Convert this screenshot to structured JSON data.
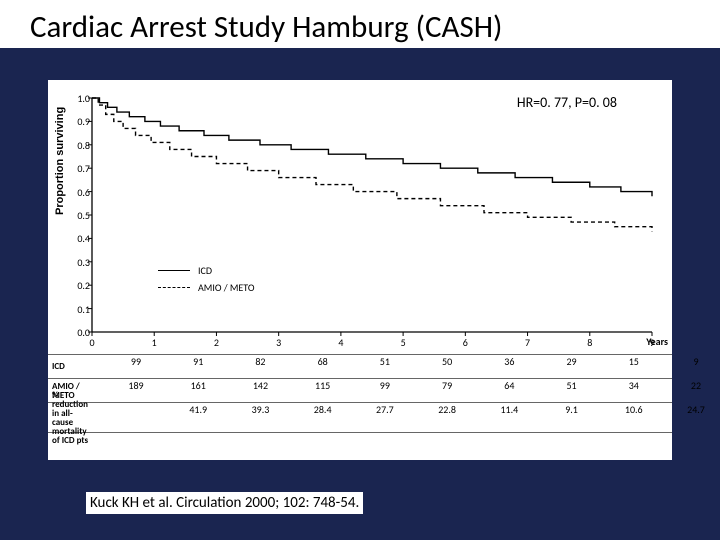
{
  "title": "Cardiac Arrest Study Hamburg (CASH)",
  "hr_stat": "HR=0. 77, P=0. 08",
  "citation": "Kuck KH et al. Circulation 2000; 102: 748-54.",
  "chart": {
    "type": "survival-step",
    "y_label": "Proportion surviving",
    "x_label": "Years",
    "ylim": [
      0,
      1.0
    ],
    "xlim": [
      0,
      9
    ],
    "y_ticks": [
      0,
      0.1,
      0.2,
      0.3,
      0.4,
      0.5,
      0.6,
      0.7,
      0.8,
      0.9,
      1.0
    ],
    "x_ticks": [
      0,
      1,
      2,
      3,
      4,
      5,
      6,
      7,
      8,
      9
    ],
    "background_color": "#ffffff",
    "axis_color": "#000000",
    "series": [
      {
        "name": "ICD",
        "style": "solid",
        "color": "#000000",
        "width": 1.4,
        "points": [
          [
            0,
            1.0
          ],
          [
            0.12,
            0.98
          ],
          [
            0.25,
            0.96
          ],
          [
            0.4,
            0.94
          ],
          [
            0.6,
            0.92
          ],
          [
            0.85,
            0.9
          ],
          [
            1.1,
            0.88
          ],
          [
            1.4,
            0.86
          ],
          [
            1.8,
            0.84
          ],
          [
            2.2,
            0.82
          ],
          [
            2.7,
            0.8
          ],
          [
            3.2,
            0.78
          ],
          [
            3.8,
            0.76
          ],
          [
            4.4,
            0.74
          ],
          [
            5.0,
            0.72
          ],
          [
            5.6,
            0.7
          ],
          [
            6.2,
            0.68
          ],
          [
            6.8,
            0.66
          ],
          [
            7.4,
            0.64
          ],
          [
            8.0,
            0.62
          ],
          [
            8.5,
            0.6
          ],
          [
            9.0,
            0.58
          ]
        ]
      },
      {
        "name": "AMIO / METO",
        "style": "dashed",
        "color": "#000000",
        "width": 1.4,
        "points": [
          [
            0,
            1.0
          ],
          [
            0.1,
            0.97
          ],
          [
            0.22,
            0.93
          ],
          [
            0.35,
            0.9
          ],
          [
            0.5,
            0.87
          ],
          [
            0.7,
            0.84
          ],
          [
            0.95,
            0.81
          ],
          [
            1.25,
            0.78
          ],
          [
            1.6,
            0.75
          ],
          [
            2.0,
            0.72
          ],
          [
            2.5,
            0.69
          ],
          [
            3.0,
            0.66
          ],
          [
            3.6,
            0.63
          ],
          [
            4.2,
            0.6
          ],
          [
            4.9,
            0.57
          ],
          [
            5.6,
            0.54
          ],
          [
            6.3,
            0.51
          ],
          [
            7.0,
            0.49
          ],
          [
            7.7,
            0.47
          ],
          [
            8.4,
            0.45
          ],
          [
            9.0,
            0.43
          ]
        ]
      }
    ],
    "legend": {
      "items": [
        "ICD",
        "AMIO / METO"
      ]
    }
  },
  "risk_table": {
    "x_values": [
      0,
      1,
      2,
      3,
      4,
      5,
      6,
      7,
      8,
      9
    ],
    "rows": [
      {
        "label": "ICD",
        "values": [
          99,
          91,
          82,
          68,
          51,
          50,
          36,
          29,
          15,
          9
        ]
      },
      {
        "label": "AMIO / METO",
        "values": [
          189,
          161,
          142,
          115,
          99,
          79,
          64,
          51,
          34,
          22
        ]
      },
      {
        "label": "% reduction in all-cause mortality of ICD pts",
        "values": [
          "",
          41.9,
          39.3,
          28.4,
          27.7,
          22.8,
          11.4,
          "9.1",
          10.6,
          24.7
        ]
      }
    ]
  },
  "colors": {
    "slide_bg": "#1a2550",
    "panel_bg": "#ffffff",
    "text": "#000000",
    "table_border": "#666666"
  }
}
